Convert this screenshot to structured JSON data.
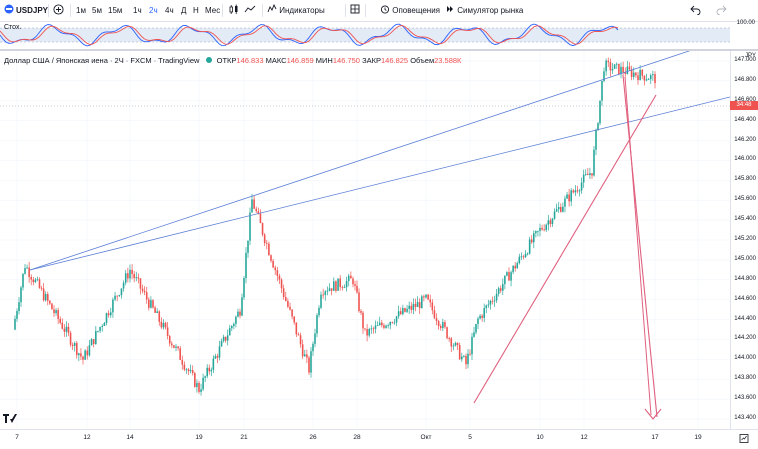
{
  "toolbar": {
    "symbol": "USDJPY",
    "add_symbol_icon": "plus-circle-icon",
    "intervals": [
      "1м",
      "5м",
      "15м",
      "1ч",
      "2ч",
      "4ч",
      "Д",
      "Н",
      "Мес"
    ],
    "active_interval": "2ч",
    "indicators_label": "Индикаторы",
    "alert_label": "Оповещения",
    "replay_label": "Симулятор рынка",
    "undo_icon": "undo-icon",
    "redo_icon": "redo-icon"
  },
  "oscillator": {
    "label": "Стох.",
    "top_value": "100.00"
  },
  "legend": {
    "title": "Доллар США / Японская иена · 2Ч · FXCM · TradingView",
    "open_label": "ОТКР",
    "open": "146.833",
    "high_label": "МАКС",
    "high": "146.859",
    "low_label": "МИН",
    "low": "146.750",
    "close_label": "ЗАКР",
    "close": "146.825",
    "volume_label": "Объем",
    "volume": "23.588К"
  },
  "price_axis": {
    "corner": "JPY",
    "ticks": [
      "147.000",
      "146.800",
      "146.600",
      "146.400",
      "146.200",
      "146.000",
      "145.800",
      "145.600",
      "145.400",
      "145.200",
      "145.000",
      "144.800",
      "144.600",
      "144.400",
      "144.200",
      "144.000",
      "143.800",
      "143.600",
      "143.400"
    ],
    "last_price_tag": "34:48"
  },
  "time_axis": {
    "ticks": [
      "7",
      "12",
      "14",
      "19",
      "21",
      "26",
      "28",
      "Окт",
      "5",
      "10",
      "12",
      "17",
      "19"
    ]
  },
  "colors": {
    "up": "#26a69a",
    "down": "#ef5350",
    "trendline_blue": "#5b7fd6",
    "trendline_red": "#e0607e",
    "accent": "#2962ff"
  },
  "chart_data": {
    "type": "candlestick",
    "symbol": "USDJPY",
    "x_ticks": [
      "7",
      "12",
      "14",
      "19",
      "21",
      "26",
      "28",
      "Окт",
      "5",
      "10",
      "12",
      "17",
      "19"
    ],
    "ylim": [
      143.3,
      147.1
    ],
    "close_path": [
      {
        "x": "7",
        "y": 144.3
      },
      {
        "x": "7",
        "y": 144.95
      },
      {
        "x": "12",
        "y": 144.0
      },
      {
        "x": "14",
        "y": 144.9
      },
      {
        "x": "19",
        "y": 143.7
      },
      {
        "x": "21",
        "y": 144.5
      },
      {
        "x": "21",
        "y": 145.6
      },
      {
        "x": "26",
        "y": 143.9
      },
      {
        "x": "26",
        "y": 144.7
      },
      {
        "x": "28",
        "y": 144.8
      },
      {
        "x": "28",
        "y": 144.25
      },
      {
        "x": "Окт",
        "y": 144.6
      },
      {
        "x": "5",
        "y": 143.95
      },
      {
        "x": "5",
        "y": 144.4
      },
      {
        "x": "10",
        "y": 145.3
      },
      {
        "x": "12",
        "y": 145.9
      },
      {
        "x": "12",
        "y": 146.95
      },
      {
        "x": "17",
        "y": 146.825
      }
    ],
    "last_ohlc": {
      "open": 146.833,
      "high": 146.859,
      "low": 146.75,
      "close": 146.825,
      "volume": "23.588К"
    }
  }
}
